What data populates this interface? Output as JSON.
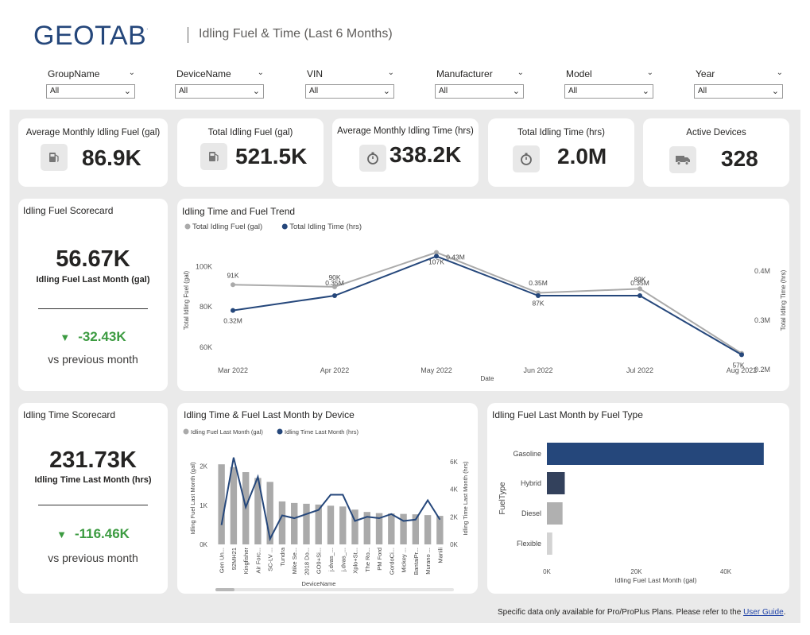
{
  "header": {
    "logo": "GEOTAB",
    "logo_mark": ".",
    "title": "Idling Fuel & Time (Last 6 Months)"
  },
  "filters": [
    {
      "label": "GroupName",
      "value": "All"
    },
    {
      "label": "DeviceName",
      "value": "All"
    },
    {
      "label": "VIN",
      "value": "All"
    },
    {
      "label": "Manufacturer",
      "value": "All"
    },
    {
      "label": "Model",
      "value": "All"
    },
    {
      "label": "Year",
      "value": "All"
    }
  ],
  "kpis": [
    {
      "title": "Average Monthly Idling Fuel (gal)",
      "value": "86.9K",
      "icon": "fuel-pump-icon"
    },
    {
      "title": "Total Idling Fuel (gal)",
      "value": "521.5K",
      "icon": "fuel-pump-icon"
    },
    {
      "title": "Average Monthly Idling Time (hrs)",
      "value": "338.2K",
      "icon": "stopwatch-icon"
    },
    {
      "title": "Total Idling Time (hrs)",
      "value": "2.0M",
      "icon": "stopwatch-icon"
    },
    {
      "title": "Active Devices",
      "value": "328",
      "icon": "truck-icon"
    }
  ],
  "fuel_scorecard": {
    "title": "Idling Fuel Scorecard",
    "value": "56.67K",
    "label": "Idling Fuel Last Month (gal)",
    "delta": "-32.43K",
    "delta_arrow": "▼",
    "vs": "vs previous month"
  },
  "time_scorecard": {
    "title": "Idling Time Scorecard",
    "value": "231.73K",
    "label": "Idling Time Last Month (hrs)",
    "delta": "-116.46K",
    "delta_arrow": "▼",
    "vs": "vs previous month"
  },
  "colors": {
    "navy": "#25477b",
    "gray": "#aaaaaa",
    "green": "#3c9b41"
  },
  "footer": {
    "text": "Specific data only available for Pro/ProPlus Plans. Please refer to the ",
    "link": "User Guide",
    "end": "."
  },
  "chart_data": [
    {
      "type": "line",
      "title": "Idling Time and Fuel Trend",
      "categories": [
        "Mar 2022",
        "Apr 2022",
        "May 2022",
        "Jun 2022",
        "Jul 2022",
        "Aug 2022"
      ],
      "xlabel": "Date",
      "ylabel": "Total Idling Fuel (gal)",
      "y2label": "Total Idling Time (hrs)",
      "ylim": [
        49000,
        110000
      ],
      "y2lim": [
        0.2,
        0.45
      ],
      "yticks": [
        60000,
        80000,
        100000
      ],
      "ytick_labels": [
        "60K",
        "80K",
        "100K"
      ],
      "y2ticks": [
        0.2,
        0.3,
        0.4
      ],
      "y2tick_labels": [
        "0.2M",
        "0.3M",
        "0.4M"
      ],
      "series": [
        {
          "name": "Total Idling Fuel (gal)",
          "axis": "left",
          "color": "#aaaaaa",
          "values": [
            91000,
            90000,
            107000,
            87000,
            89000,
            57000
          ],
          "labels": [
            "91K",
            "90K",
            "107K",
            "87K",
            "89K",
            "57K"
          ]
        },
        {
          "name": "Total Idling Time (hrs)",
          "axis": "right",
          "color": "#25477b",
          "values": [
            0.32,
            0.35,
            0.43,
            0.35,
            0.35,
            0.23
          ],
          "labels": [
            "0.32M",
            "0.35M",
            "0.43M",
            "0.35M",
            "0.35M",
            ""
          ]
        }
      ]
    },
    {
      "type": "bar",
      "title": "Idling Time & Fuel Last Month by Device",
      "xlabel": "DeviceName",
      "ylabel": "Idling Fuel Last Month (gal)",
      "y2label": "Idling Time Last Month (hrs)",
      "ylim": [
        0,
        2400
      ],
      "y2lim": [
        0,
        6800
      ],
      "yticks": [
        0,
        1000,
        2000
      ],
      "ytick_labels": [
        "0K",
        "1K",
        "2K"
      ],
      "y2ticks": [
        0,
        2000,
        4000,
        6000
      ],
      "y2tick_labels": [
        "0K",
        "2K",
        "4K",
        "6K"
      ],
      "categories": [
        "Gen Un...",
        "92MH21",
        "Kingfisher",
        "Air Forc...",
        "SC-LV ...",
        "Tundra",
        "Mike Se...",
        "2018 Do...",
        "GO9+Si...",
        "j.dvas_...",
        "j.dvas_...",
        "Xplo+St...",
        "The Ro...",
        "PM Ford",
        "GordoCi...",
        "Mickey ...",
        "BantaiPr...",
        "Murano ...",
        "Manili"
      ],
      "series": [
        {
          "name": "Idling Fuel Last Month (gal)",
          "type": "bar",
          "color": "#aaaaaa",
          "values": [
            2050,
            1980,
            1850,
            1700,
            1600,
            1100,
            1060,
            1040,
            1020,
            990,
            970,
            890,
            830,
            800,
            790,
            780,
            770,
            750,
            730
          ]
        },
        {
          "name": "Idling Time Last Month (hrs)",
          "type": "line",
          "color": "#25477b",
          "values": [
            1400,
            6300,
            2700,
            4900,
            400,
            2100,
            1900,
            2200,
            2500,
            3600,
            3600,
            1700,
            2000,
            1900,
            2200,
            1700,
            1800,
            3200,
            1800
          ]
        }
      ]
    },
    {
      "type": "bar",
      "orientation": "horizontal",
      "title": "Idling Fuel Last Month by Fuel Type",
      "xlabel": "Idling Fuel Last Month (gal)",
      "ylabel": "FuelType",
      "xlim": [
        0,
        50000
      ],
      "xticks": [
        0,
        20000,
        40000
      ],
      "xtick_labels": [
        "0K",
        "20K",
        "40K"
      ],
      "categories": [
        "Gasoline",
        "Hybrid",
        "Diesel",
        "Flexible"
      ],
      "values": [
        48500,
        4000,
        3500,
        1200
      ],
      "colors": [
        "#25477b",
        "#33415c",
        "#b0b0b0",
        "#d3d3d3"
      ]
    }
  ]
}
